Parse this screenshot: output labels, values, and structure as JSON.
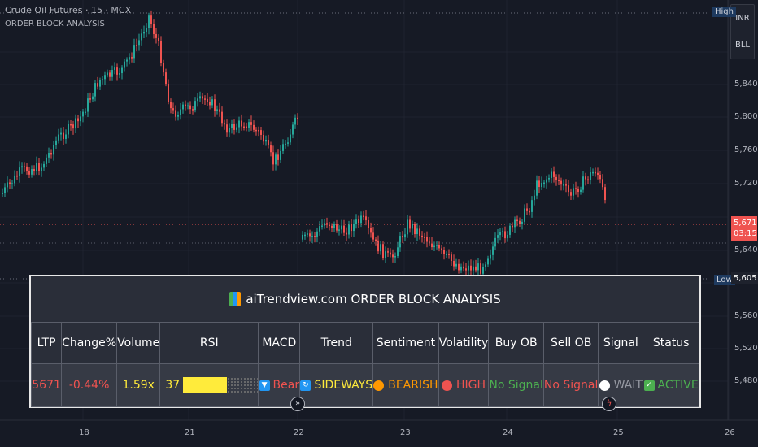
{
  "header": {
    "symbol": "Crude Oil Futures · 15 · MCX",
    "indicator": "ORDER BLOCK ANALYSIS"
  },
  "currency": {
    "line1": "INR",
    "line2": "BLL"
  },
  "axis": {
    "prices": [
      "5,840",
      "5,800",
      "5,760",
      "5,720",
      "5,640",
      "5,560",
      "5,520",
      "5,480"
    ],
    "dates": [
      "18",
      "21",
      "22",
      "23",
      "24",
      "25",
      "26"
    ]
  },
  "tags": {
    "high_label": "High",
    "low_label": "Low",
    "low_price": "5,605",
    "last_price": "5,671",
    "countdown": "03:15"
  },
  "colors": {
    "up": "#26a69a",
    "down": "#ef5350",
    "bg": "#161a25"
  },
  "panel": {
    "title": "aiTrendview.com ORDER BLOCK ANALYSIS",
    "headers": [
      "LTP",
      "Change%",
      "Volume",
      "RSI",
      "MACD",
      "Trend",
      "Sentiment",
      "Volatility",
      "Buy OB",
      "Sell OB",
      "Signal",
      "Status"
    ],
    "values": {
      "ltp": "5671",
      "change": "-0.44%",
      "volume": "1.59x",
      "rsi": "37",
      "macd": "Bear",
      "trend": "SIDEWAYS",
      "sentiment": "BEARISH",
      "volatility": "HIGH",
      "buy_ob": "No Signal",
      "sell_ob": "No Signal",
      "signal": "WAIT",
      "status": "ACTIVE"
    },
    "rsi_level": 0.37
  }
}
